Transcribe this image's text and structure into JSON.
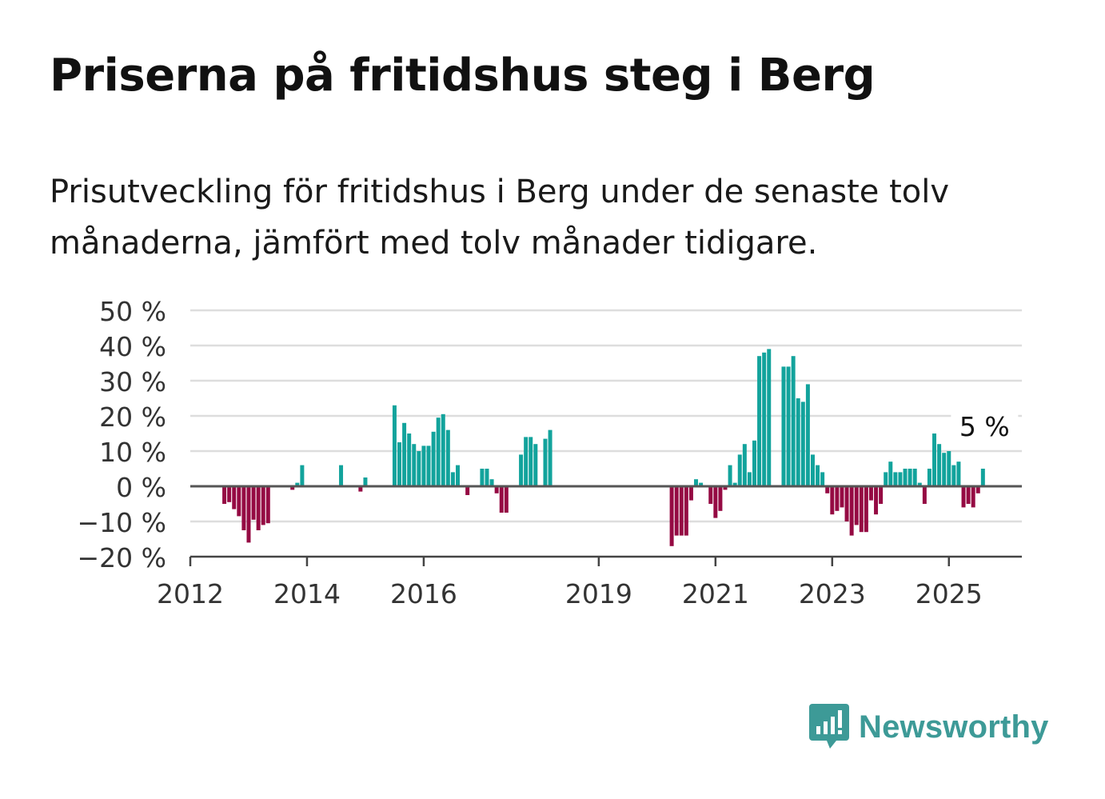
{
  "header": {
    "title": "Priserna på fritidshus steg i Berg",
    "subtitle": "Prisutveckling för fritidshus i Berg under de senaste tolv månaderna, jämfört med tolv månader tidigare."
  },
  "brand": {
    "name": "Newsworthy",
    "icon": "newsworthy-logo-icon",
    "color": "#3d9a97"
  },
  "colors": {
    "positive": "#12a39c",
    "negative": "#950a43",
    "grid": "#dddddd",
    "axis": "#444444"
  },
  "chart_data": {
    "type": "bar",
    "ylim": [
      -20,
      50
    ],
    "yticks": [
      -20,
      -10,
      0,
      10,
      20,
      30,
      40,
      50
    ],
    "ytick_labels": [
      "−20 %",
      "−10 %",
      "0 %",
      "10 %",
      "20 %",
      "30 %",
      "40 %",
      "50 %"
    ],
    "xticks": [
      "2012",
      "2014",
      "2016",
      "2019",
      "2021",
      "2023",
      "2025"
    ],
    "grid": true,
    "annotation": {
      "text": "5 %",
      "value": 5
    },
    "series": [
      {
        "values": [
          {
            "x": "2012-08",
            "y": -5
          },
          {
            "x": "2012-09",
            "y": -4.5
          },
          {
            "x": "2012-10",
            "y": -6.5
          },
          {
            "x": "2012-11",
            "y": -8.5
          },
          {
            "x": "2012-12",
            "y": -12.5
          },
          {
            "x": "2013-01",
            "y": -16
          },
          {
            "x": "2013-02",
            "y": -9.5
          },
          {
            "x": "2013-03",
            "y": -12.5
          },
          {
            "x": "2013-04",
            "y": -11
          },
          {
            "x": "2013-05",
            "y": -10.5
          },
          {
            "x": "2013-10",
            "y": -1
          },
          {
            "x": "2013-11",
            "y": 1
          },
          {
            "x": "2013-12",
            "y": 6
          },
          {
            "x": "2014-08",
            "y": 6
          },
          {
            "x": "2014-12",
            "y": -1.5
          },
          {
            "x": "2015-01",
            "y": 2.5
          },
          {
            "x": "2015-07",
            "y": 23
          },
          {
            "x": "2015-08",
            "y": 12.5
          },
          {
            "x": "2015-09",
            "y": 18
          },
          {
            "x": "2015-10",
            "y": 15
          },
          {
            "x": "2015-11",
            "y": 12
          },
          {
            "x": "2015-12",
            "y": 10
          },
          {
            "x": "2016-01",
            "y": 11.5
          },
          {
            "x": "2016-02",
            "y": 11.5
          },
          {
            "x": "2016-03",
            "y": 15.5
          },
          {
            "x": "2016-04",
            "y": 19.5
          },
          {
            "x": "2016-05",
            "y": 20.5
          },
          {
            "x": "2016-06",
            "y": 16
          },
          {
            "x": "2016-07",
            "y": 4
          },
          {
            "x": "2016-08",
            "y": 6
          },
          {
            "x": "2016-10",
            "y": -2.5
          },
          {
            "x": "2017-01",
            "y": 5
          },
          {
            "x": "2017-02",
            "y": 5
          },
          {
            "x": "2017-03",
            "y": 2
          },
          {
            "x": "2017-04",
            "y": -2
          },
          {
            "x": "2017-05",
            "y": -7.5
          },
          {
            "x": "2017-06",
            "y": -7.5
          },
          {
            "x": "2017-09",
            "y": 9
          },
          {
            "x": "2017-10",
            "y": 14
          },
          {
            "x": "2017-11",
            "y": 14
          },
          {
            "x": "2017-12",
            "y": 12
          },
          {
            "x": "2018-02",
            "y": 13.5
          },
          {
            "x": "2018-03",
            "y": 16
          },
          {
            "x": "2020-04",
            "y": -17
          },
          {
            "x": "2020-05",
            "y": -14
          },
          {
            "x": "2020-06",
            "y": -14
          },
          {
            "x": "2020-07",
            "y": -14
          },
          {
            "x": "2020-08",
            "y": -4
          },
          {
            "x": "2020-09",
            "y": 2
          },
          {
            "x": "2020-10",
            "y": 1
          },
          {
            "x": "2020-12",
            "y": -5
          },
          {
            "x": "2021-01",
            "y": -9
          },
          {
            "x": "2021-02",
            "y": -7
          },
          {
            "x": "2021-03",
            "y": -1
          },
          {
            "x": "2021-04",
            "y": 6
          },
          {
            "x": "2021-05",
            "y": 1
          },
          {
            "x": "2021-06",
            "y": 9
          },
          {
            "x": "2021-07",
            "y": 12
          },
          {
            "x": "2021-08",
            "y": 4
          },
          {
            "x": "2021-09",
            "y": 13
          },
          {
            "x": "2021-10",
            "y": 37
          },
          {
            "x": "2021-11",
            "y": 38
          },
          {
            "x": "2021-12",
            "y": 39
          },
          {
            "x": "2022-03",
            "y": 34
          },
          {
            "x": "2022-04",
            "y": 34
          },
          {
            "x": "2022-05",
            "y": 37
          },
          {
            "x": "2022-06",
            "y": 25
          },
          {
            "x": "2022-07",
            "y": 24
          },
          {
            "x": "2022-08",
            "y": 29
          },
          {
            "x": "2022-09",
            "y": 9
          },
          {
            "x": "2022-10",
            "y": 6
          },
          {
            "x": "2022-11",
            "y": 4
          },
          {
            "x": "2022-12",
            "y": -2
          },
          {
            "x": "2023-01",
            "y": -8
          },
          {
            "x": "2023-02",
            "y": -7
          },
          {
            "x": "2023-03",
            "y": -6
          },
          {
            "x": "2023-04",
            "y": -10
          },
          {
            "x": "2023-05",
            "y": -14
          },
          {
            "x": "2023-06",
            "y": -11
          },
          {
            "x": "2023-07",
            "y": -13
          },
          {
            "x": "2023-08",
            "y": -13
          },
          {
            "x": "2023-09",
            "y": -4
          },
          {
            "x": "2023-10",
            "y": -8
          },
          {
            "x": "2023-11",
            "y": -5
          },
          {
            "x": "2023-12",
            "y": 4
          },
          {
            "x": "2024-01",
            "y": 7
          },
          {
            "x": "2024-02",
            "y": 4
          },
          {
            "x": "2024-03",
            "y": 4
          },
          {
            "x": "2024-04",
            "y": 5
          },
          {
            "x": "2024-05",
            "y": 5
          },
          {
            "x": "2024-06",
            "y": 5
          },
          {
            "x": "2024-07",
            "y": 1
          },
          {
            "x": "2024-08",
            "y": -5
          },
          {
            "x": "2024-09",
            "y": 5
          },
          {
            "x": "2024-10",
            "y": 15
          },
          {
            "x": "2024-11",
            "y": 12
          },
          {
            "x": "2024-12",
            "y": 9.5
          },
          {
            "x": "2025-01",
            "y": 10
          },
          {
            "x": "2025-02",
            "y": 6
          },
          {
            "x": "2025-03",
            "y": 7
          },
          {
            "x": "2025-04",
            "y": -6
          },
          {
            "x": "2025-05",
            "y": -5
          },
          {
            "x": "2025-06",
            "y": -6
          },
          {
            "x": "2025-07",
            "y": -2
          },
          {
            "x": "2025-08",
            "y": 5
          }
        ]
      }
    ]
  }
}
